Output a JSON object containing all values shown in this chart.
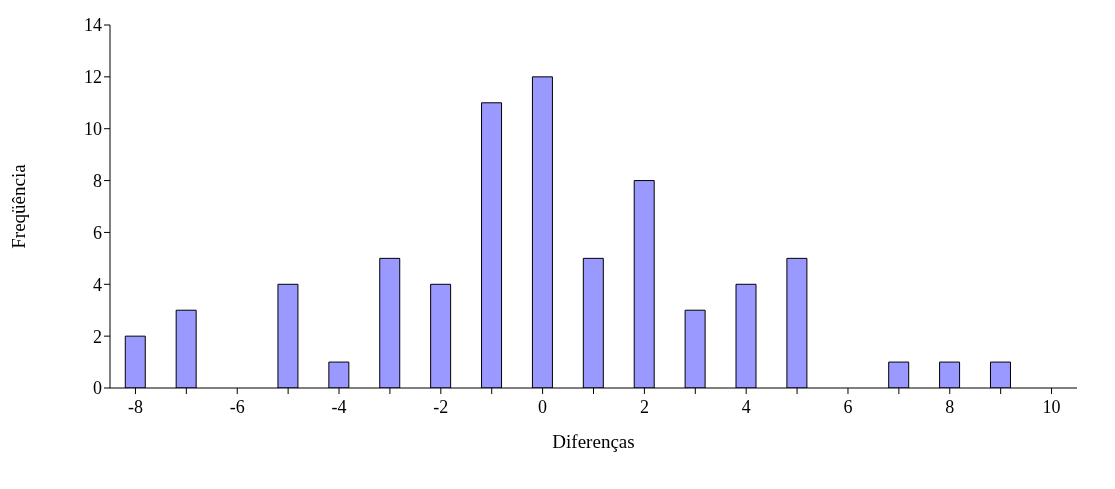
{
  "chart_data": {
    "type": "bar",
    "xlabel": "Diferenças",
    "ylabel": "Freqüência",
    "categories": [
      "-8",
      null,
      "-6",
      null,
      "-4",
      null,
      "-2",
      null,
      "0",
      null,
      "2",
      null,
      "4",
      null,
      "6",
      null,
      "8",
      null,
      "10"
    ],
    "values": [
      2,
      3,
      0,
      4,
      1,
      5,
      4,
      11,
      12,
      5,
      8,
      3,
      4,
      5,
      0,
      1,
      1,
      1,
      0
    ],
    "color": "#9999ff",
    "ylim": [
      0,
      14
    ],
    "yticks": [
      0,
      2,
      4,
      6,
      8,
      10,
      12,
      14
    ],
    "grid": false,
    "legend": false
  }
}
